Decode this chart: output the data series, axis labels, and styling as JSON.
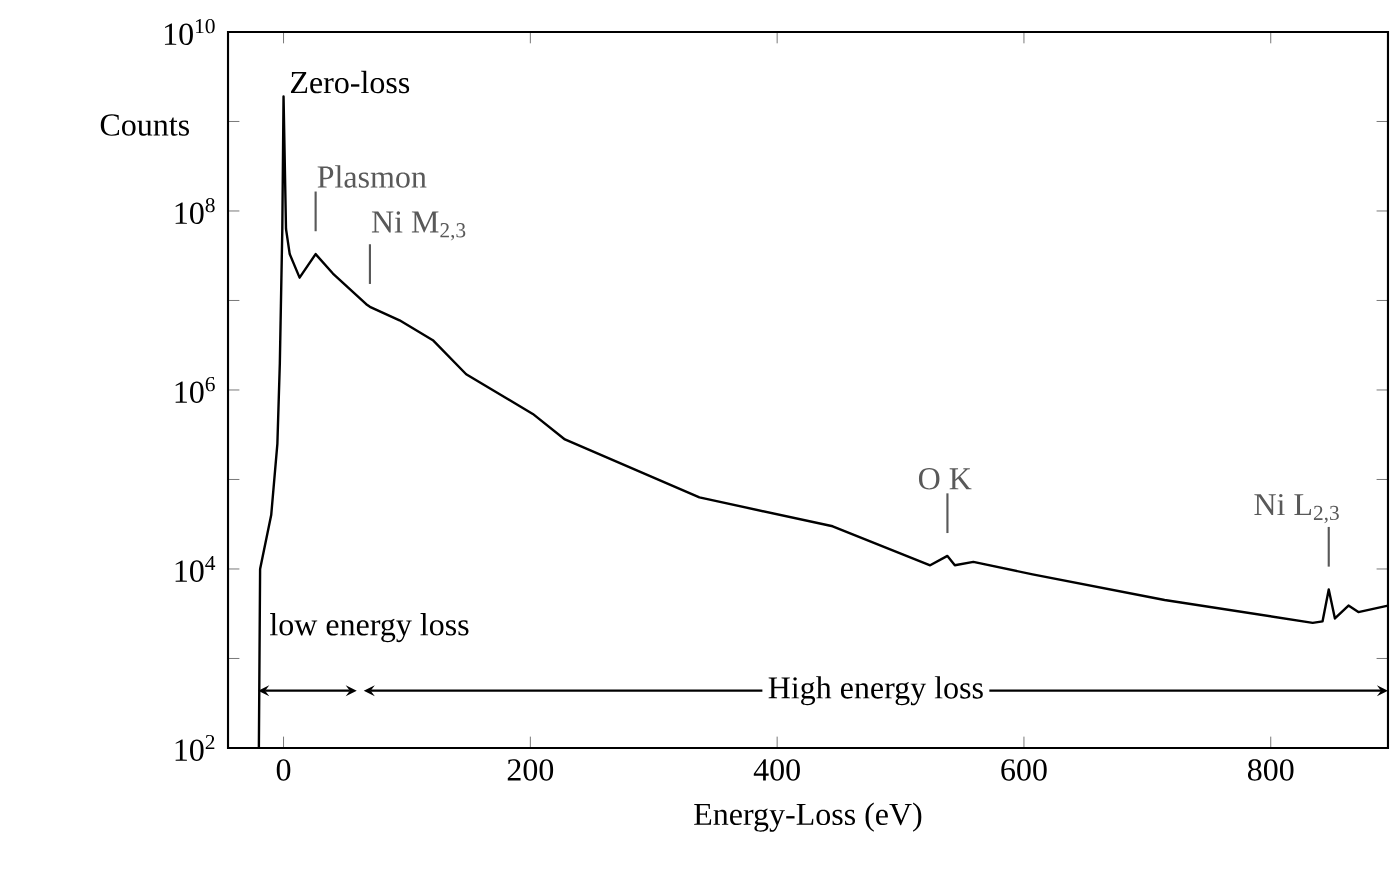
{
  "chart_data": {
    "type": "line",
    "xlabel": "Energy-Loss (eV)",
    "ylabel": "Counts",
    "log": "y",
    "xlim": [
      -45,
      895
    ],
    "ylim": [
      100,
      10000000000
    ],
    "xticks": [
      0,
      200,
      400,
      600,
      800
    ],
    "yticks": [
      {
        "value": 100,
        "label": "10$^{2}$"
      },
      {
        "value": 1000,
        "label": null
      },
      {
        "value": 10000,
        "label": "10$^{4}$"
      },
      {
        "value": 100000,
        "label": null
      },
      {
        "value": 1000000,
        "label": "10$^{6}$"
      },
      {
        "value": 10000000,
        "label": null
      },
      {
        "value": 100000000,
        "label": "10$^{8}$"
      },
      {
        "value": 1000000000,
        "label": null
      },
      {
        "value": 10000000000,
        "label": "10$^{10}$"
      }
    ],
    "series": [
      {
        "color": "#000000",
        "x": [
          -20,
          -19,
          -10,
          -5,
          -3,
          -1,
          0,
          2,
          5,
          13,
          26,
          40,
          67,
          70,
          94,
          121,
          148,
          202,
          228,
          337,
          445,
          524,
          538,
          544,
          559,
          607,
          714,
          834,
          842,
          847,
          852,
          863,
          871,
          895
        ],
        "values": [
          100,
          10000,
          40000,
          250000,
          2000000,
          63000000,
          1900000000,
          63000000,
          33000000,
          18000000,
          33000000,
          20000000,
          9100000,
          8500000,
          6000000,
          3600000,
          1500000,
          540000,
          280000,
          63000,
          30000,
          11000,
          14000,
          11000,
          12000,
          8700,
          4500,
          2500,
          2600,
          5900,
          2800,
          3900,
          3300,
          3900
        ]
      }
    ],
    "annotations": [
      {
        "text": "Zero-loss",
        "x": 0,
        "y": 1900000000
      },
      {
        "text": "Plasmon",
        "x": 26,
        "y": 33000000
      },
      {
        "text": "Ni M$_{2,3}$",
        "x": 70,
        "y": 8500000
      },
      {
        "text": "O K",
        "x": 538,
        "y": 14000
      },
      {
        "text": "Ni L$_{2,3}$",
        "x": 847,
        "y": 5900
      },
      "low energy loss",
      "High energy loss"
    ]
  }
}
